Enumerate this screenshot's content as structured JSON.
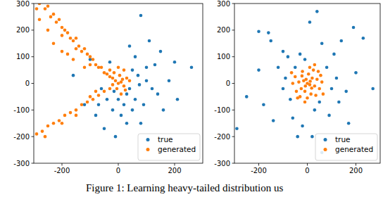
{
  "caption": "Figure 1: Learning heavy-tailed distribution us",
  "chart_data": [
    {
      "type": "scatter",
      "xlim": [
        -300,
        300
      ],
      "ylim": [
        -300,
        300
      ],
      "xticks": [
        -200,
        0,
        200
      ],
      "yticks": [
        -300,
        -200,
        -100,
        0,
        100,
        200,
        300
      ],
      "legend": "lower right",
      "series": [
        {
          "name": "true",
          "color": "#1f77b4",
          "marker": "circle",
          "x": [
            260,
            80,
            200,
            150,
            100,
            120,
            60,
            50,
            30,
            -10,
            -50,
            -80,
            -120,
            -160,
            -100,
            40,
            90,
            140,
            180,
            20,
            70,
            30,
            -40,
            -20,
            10,
            60,
            110,
            160,
            210,
            -60,
            -30,
            50,
            80,
            0,
            100,
            -70,
            130,
            40,
            -15,
            75
          ],
          "values": [
            60,
            255,
            80,
            120,
            60,
            -20,
            -60,
            -100,
            -150,
            -200,
            -170,
            -120,
            -80,
            30,
            90,
            140,
            -80,
            -40,
            10,
            -80,
            30,
            -40,
            -60,
            -100,
            -120,
            100,
            160,
            -100,
            -60,
            -20,
            80,
            50,
            -150,
            -60,
            10,
            -80,
            70,
            -20,
            -30,
            -5
          ]
        },
        {
          "name": "generated",
          "color": "#ff7f0e",
          "marker": "circle",
          "x": [
            -280,
            -260,
            -250,
            -240,
            -230,
            -220,
            -210,
            -200,
            -200,
            -190,
            -180,
            -170,
            -160,
            -150,
            -150,
            -140,
            -130,
            -120,
            -110,
            -100,
            -100,
            -90,
            -80,
            -70,
            -60,
            -50,
            -40,
            -30,
            -20,
            -230,
            -200,
            -180,
            -250,
            -280,
            -160,
            -120,
            -290,
            -290,
            -270,
            -250,
            -230,
            -210,
            -190,
            -170,
            -150,
            -130,
            -110,
            -90,
            -70,
            -50,
            -30,
            -260,
            -200,
            -150,
            -100,
            -80,
            0,
            10,
            -10,
            20,
            5,
            -5,
            15,
            30,
            -20,
            25,
            40,
            -15,
            10,
            0,
            -30,
            20
          ],
          "values": [
            300,
            280,
            290,
            250,
            260,
            230,
            240,
            210,
            180,
            200,
            190,
            170,
            160,
            170,
            130,
            140,
            120,
            130,
            110,
            100,
            70,
            90,
            70,
            60,
            60,
            40,
            35,
            25,
            20,
            150,
            120,
            110,
            200,
            240,
            90,
            60,
            280,
            -190,
            -180,
            -160,
            -150,
            -140,
            -120,
            -110,
            -100,
            -80,
            -70,
            -60,
            -45,
            -30,
            -20,
            -200,
            -150,
            -120,
            -50,
            -30,
            0,
            5,
            10,
            -10,
            30,
            -20,
            15,
            20,
            -5,
            -25,
            10,
            40,
            -40,
            60,
            50,
            50
          ]
        }
      ]
    },
    {
      "type": "scatter",
      "xlim": [
        -300,
        300
      ],
      "ylim": [
        -300,
        300
      ],
      "xticks": [
        -200,
        0,
        200
      ],
      "yticks": [
        -300,
        -200,
        -100,
        0,
        100,
        200,
        300
      ],
      "legend": "lower right",
      "series": [
        {
          "name": "true",
          "color": "#1f77b4",
          "marker": "circle",
          "x": [
            -200,
            -160,
            -150,
            40,
            10,
            -100,
            -120,
            -80,
            -250,
            -290,
            -180,
            -100,
            -60,
            -20,
            -40,
            20,
            90,
            130,
            160,
            200,
            270,
            230,
            110,
            60,
            140,
            80,
            -50,
            -70,
            50,
            100,
            -140,
            -30,
            170,
            60,
            -10,
            30,
            -90,
            120,
            -200,
            190
          ],
          "values": [
            195,
            190,
            160,
            270,
            230,
            120,
            60,
            100,
            -50,
            -170,
            -80,
            -20,
            -130,
            -160,
            -200,
            -200,
            -120,
            -70,
            -30,
            40,
            -20,
            170,
            110,
            150,
            160,
            60,
            60,
            -60,
            -70,
            -20,
            -140,
            110,
            -150,
            -260,
            90,
            -100,
            20,
            20,
            50,
            210
          ]
        },
        {
          "name": "generated",
          "color": "#ff7f0e",
          "marker": "circle",
          "x": [
            0,
            10,
            -15,
            20,
            -25,
            30,
            -10,
            5,
            40,
            -35,
            15,
            -45,
            50,
            -20,
            25,
            -50,
            55,
            0,
            -30,
            35,
            -60,
            60,
            10,
            -5,
            12,
            -8,
            18,
            -22,
            45,
            -40,
            65,
            -65,
            30,
            -10
          ],
          "values": [
            0,
            -5,
            10,
            20,
            -20,
            -10,
            -30,
            35,
            15,
            5,
            -40,
            -30,
            -20,
            45,
            50,
            25,
            30,
            -55,
            -50,
            -45,
            0,
            5,
            60,
            15,
            8,
            -10,
            -18,
            28,
            45,
            -55,
            -40,
            40,
            70,
            -70
          ]
        }
      ]
    }
  ]
}
